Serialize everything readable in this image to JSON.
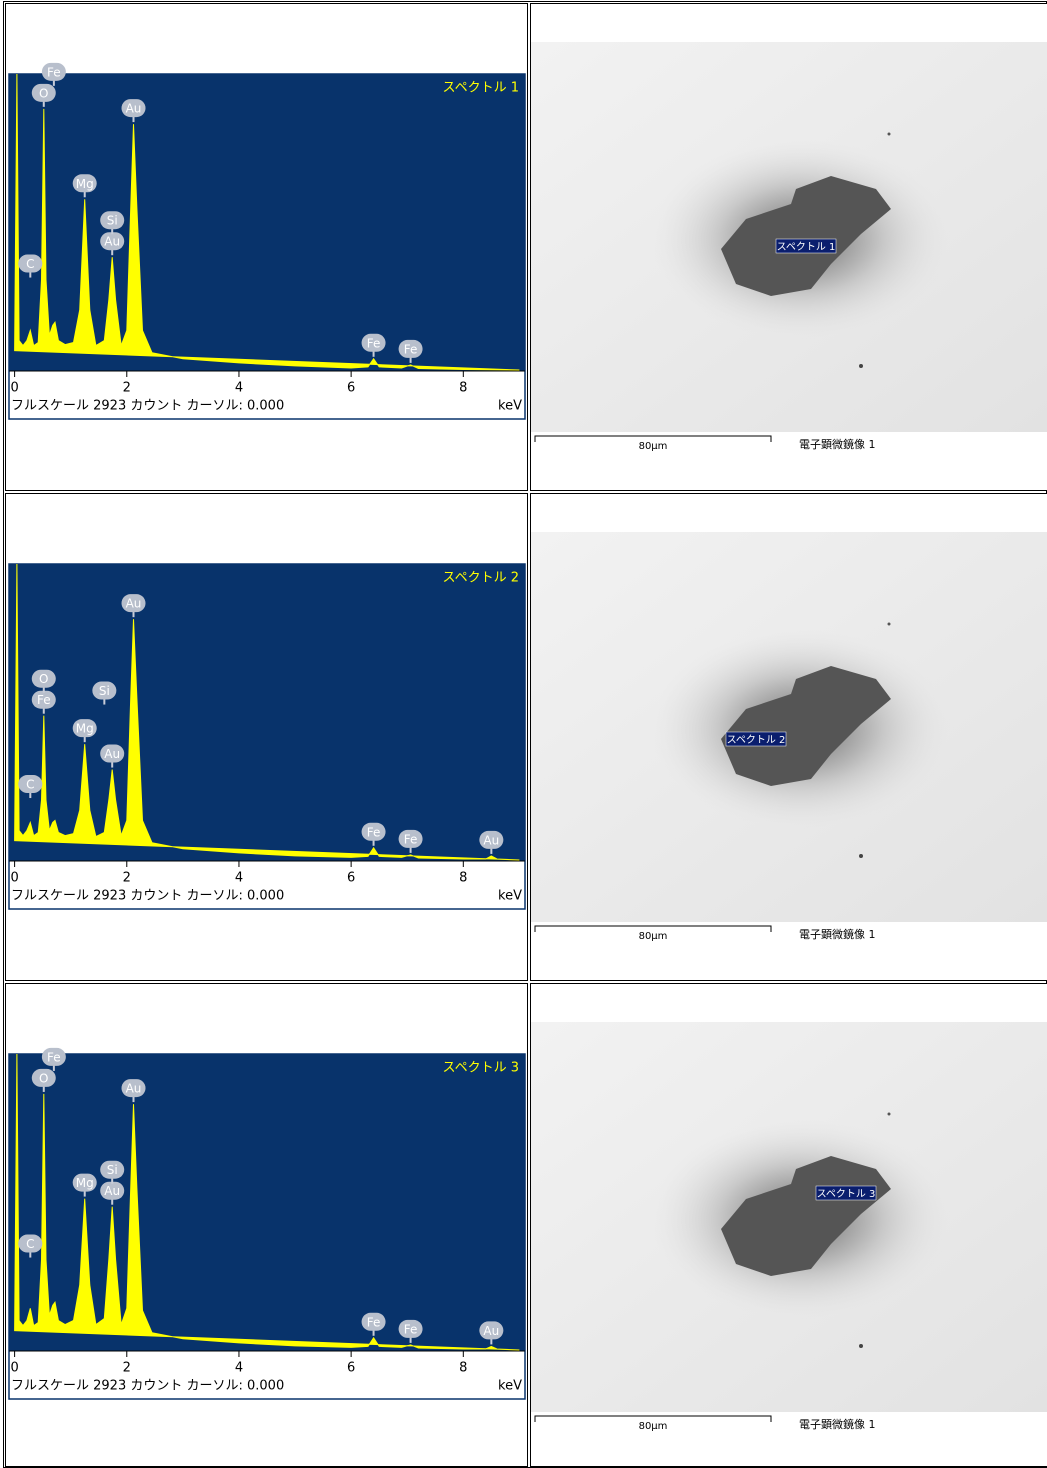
{
  "chart_data": [
    {
      "type": "spectrum",
      "title": "スペクトル 1",
      "footer": "フルスケール 2923 カウント カーソル: 0.000",
      "x_label": "keV",
      "color": "#ffff00",
      "background": "#08336b",
      "xlim": [
        -0.1,
        9.1
      ],
      "xticks": [
        0,
        2,
        4,
        6,
        8
      ],
      "ylim": [
        0,
        2923
      ],
      "x": [
        0,
        0.04,
        0.08,
        0.15,
        0.22,
        0.28,
        0.34,
        0.42,
        0.48,
        0.52,
        0.56,
        0.62,
        0.68,
        0.72,
        0.78,
        0.9,
        1.05,
        1.16,
        1.25,
        1.34,
        1.45,
        1.6,
        1.68,
        1.74,
        1.8,
        1.9,
        2.0,
        2.07,
        2.12,
        2.18,
        2.28,
        2.45,
        3.0,
        4.0,
        5.0,
        6.0,
        6.3,
        6.4,
        6.5,
        6.9,
        7.06,
        7.2,
        8.0,
        9.0
      ],
      "values": [
        200,
        2923,
        300,
        250,
        300,
        400,
        250,
        280,
        900,
        2580,
        900,
        350,
        450,
        480,
        300,
        260,
        280,
        600,
        1690,
        600,
        250,
        300,
        700,
        1120,
        700,
        250,
        400,
        1600,
        2430,
        1600,
        400,
        180,
        120,
        80,
        50,
        30,
        40,
        120,
        40,
        30,
        60,
        25,
        15,
        10
      ],
      "peak_labels": [
        {
          "label": "O",
          "x": 0.52
        },
        {
          "label": "Fe",
          "x": 0.7
        },
        {
          "label": "Mg",
          "x": 1.25
        },
        {
          "label": "Au",
          "x": 1.74
        },
        {
          "label": "Si",
          "x": 1.74
        },
        {
          "label": "Au",
          "x": 2.12
        },
        {
          "label": "C",
          "x": 0.28
        },
        {
          "label": "Fe",
          "x": 6.4
        },
        {
          "label": "Fe",
          "x": 7.06
        }
      ]
    },
    {
      "type": "spectrum",
      "title": "スペクトル 2",
      "footer": "フルスケール 2923 カウント カーソル: 0.000",
      "x_label": "keV",
      "color": "#ffff00",
      "background": "#08336b",
      "xlim": [
        -0.1,
        9.1
      ],
      "xticks": [
        0,
        2,
        4,
        6,
        8
      ],
      "ylim": [
        0,
        2923
      ],
      "x": [
        0,
        0.04,
        0.08,
        0.15,
        0.22,
        0.28,
        0.34,
        0.42,
        0.48,
        0.52,
        0.56,
        0.62,
        0.68,
        0.72,
        0.78,
        0.9,
        1.05,
        1.16,
        1.25,
        1.34,
        1.45,
        1.6,
        1.68,
        1.74,
        1.8,
        1.9,
        2.0,
        2.07,
        2.12,
        2.18,
        2.28,
        2.45,
        3.0,
        4.0,
        5.0,
        6.0,
        6.3,
        6.4,
        6.5,
        6.9,
        7.06,
        7.2,
        8.0,
        8.4,
        8.5,
        8.6,
        9.0
      ],
      "values": [
        200,
        2923,
        300,
        250,
        300,
        380,
        250,
        280,
        600,
        1430,
        600,
        300,
        380,
        400,
        280,
        250,
        270,
        500,
        1150,
        500,
        240,
        280,
        600,
        900,
        600,
        250,
        400,
        1600,
        2380,
        1600,
        400,
        180,
        120,
        80,
        50,
        35,
        45,
        130,
        45,
        35,
        60,
        30,
        20,
        20,
        50,
        20,
        10
      ],
      "peak_labels": [
        {
          "label": "Fe",
          "x": 0.52
        },
        {
          "label": "O",
          "x": 0.52
        },
        {
          "label": "Mg",
          "x": 1.25
        },
        {
          "label": "Au",
          "x": 1.74
        },
        {
          "label": "Si",
          "x": 1.6
        },
        {
          "label": "Au",
          "x": 2.12
        },
        {
          "label": "C",
          "x": 0.28
        },
        {
          "label": "Fe",
          "x": 6.4
        },
        {
          "label": "Fe",
          "x": 7.06
        },
        {
          "label": "Au",
          "x": 8.5
        }
      ]
    },
    {
      "type": "spectrum",
      "title": "スペクトル 3",
      "footer": "フルスケール 2923 カウント カーソル: 0.000",
      "x_label": "keV",
      "color": "#ffff00",
      "background": "#08336b",
      "xlim": [
        -0.1,
        9.1
      ],
      "xticks": [
        0,
        2,
        4,
        6,
        8
      ],
      "ylim": [
        0,
        2923
      ],
      "x": [
        0,
        0.04,
        0.08,
        0.15,
        0.22,
        0.28,
        0.34,
        0.42,
        0.48,
        0.52,
        0.56,
        0.62,
        0.68,
        0.72,
        0.78,
        0.9,
        1.05,
        1.16,
        1.25,
        1.34,
        1.45,
        1.6,
        1.68,
        1.74,
        1.8,
        1.9,
        2.0,
        2.07,
        2.12,
        2.18,
        2.28,
        2.45,
        3.0,
        4.0,
        5.0,
        6.0,
        6.3,
        6.4,
        6.5,
        6.9,
        7.06,
        7.2,
        8.0,
        8.4,
        8.5,
        8.6,
        9.0
      ],
      "values": [
        200,
        2923,
        300,
        250,
        300,
        420,
        250,
        280,
        900,
        2530,
        900,
        350,
        450,
        480,
        300,
        260,
        300,
        650,
        1500,
        650,
        260,
        320,
        900,
        1420,
        900,
        260,
        420,
        1600,
        2430,
        1600,
        400,
        180,
        120,
        80,
        50,
        35,
        45,
        130,
        45,
        35,
        60,
        30,
        20,
        20,
        45,
        20,
        10
      ],
      "peak_labels": [
        {
          "label": "O",
          "x": 0.52
        },
        {
          "label": "Fe",
          "x": 0.7
        },
        {
          "label": "Mg",
          "x": 1.25
        },
        {
          "label": "Au",
          "x": 1.74
        },
        {
          "label": "Si",
          "x": 1.74
        },
        {
          "label": "Au",
          "x": 2.12
        },
        {
          "label": "C",
          "x": 0.28
        },
        {
          "label": "Fe",
          "x": 6.4
        },
        {
          "label": "Fe",
          "x": 7.06
        },
        {
          "label": "Au",
          "x": 8.5
        }
      ]
    }
  ],
  "images": [
    {
      "label": "スペクトル 1",
      "scale": "80μm",
      "caption": "電子顕微鏡像 1"
    },
    {
      "label": "スペクトル 2",
      "scale": "80μm",
      "caption": "電子顕微鏡像 1"
    },
    {
      "label": "スペクトル 3",
      "scale": "80μm",
      "caption": "電子顕微鏡像 1"
    }
  ]
}
